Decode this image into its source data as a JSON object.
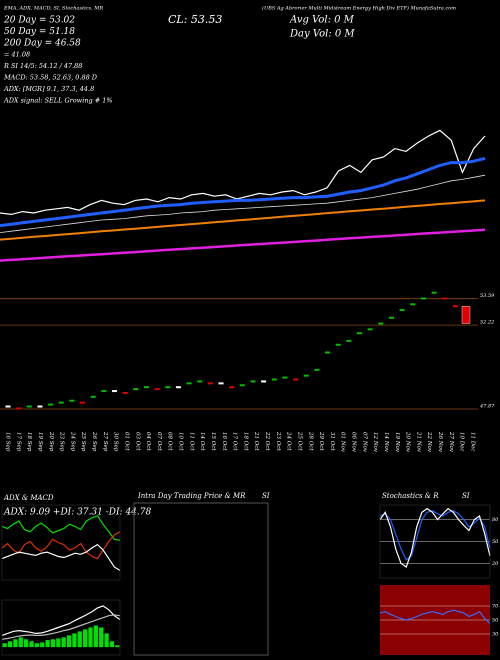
{
  "chart_data": [
    {
      "type": "line",
      "header_left": "EMA, ADX, MACD, SI, Stochastics, MR",
      "header_right": "(UBS Ag Abrorier Multi Midstream Energy High Div ETF) MunafaSutra.com",
      "close_label": "CL: 53.53",
      "avg_vol": "Avg Vol: 0  M",
      "day_vol": "Day Vol: 0  M",
      "stats": [
        "20 Day = 53.02",
        "50 Day = 51.18",
        "200 Day = 46.58",
        "= 41.08",
        "R      SI 14/5: 54.12 / 47.88",
        "MACD: 53.58, 52.63, 0.88 D",
        "ADX:          [MGR] 9.1, 37.3, 44.8",
        "ADX  signal: SELL Growing # 1%"
      ],
      "categories": [
        "16 Sep",
        "17 Sep",
        "18 Sep",
        "19 Sep",
        "20 Sep",
        "23 Sep",
        "24 Sep",
        "25 Sep",
        "26 Sep",
        "27 Sep",
        "30 Sep",
        "01 Oct",
        "03 Oct",
        "04 Oct",
        "07 Oct",
        "08 Oct",
        "10 Oct",
        "11 Oct",
        "14 Oct",
        "15 Oct",
        "16 Oct",
        "17 Oct",
        "18 Oct",
        "21 Oct",
        "22 Oct",
        "23 Oct",
        "24 Oct",
        "25 Oct",
        "28 Oct",
        "29 Oct",
        "31 Oct",
        "01 Nov",
        "06 Nov",
        "07 Nov",
        "12 Nov",
        "14 Nov",
        "19 Nov",
        "20 Nov",
        "21 Nov",
        "22 Nov",
        "26 Nov",
        "27 Nov",
        "10 Dec",
        "11 Dec"
      ],
      "ylim": [
        42.5,
        62.5
      ],
      "series": [
        {
          "color": "#ffffff",
          "values": [
            48.0,
            47.9,
            48.1,
            48.0,
            48.2,
            48.3,
            48.4,
            48.2,
            48.6,
            48.9,
            48.7,
            48.6,
            48.9,
            49.0,
            48.8,
            49.1,
            49.0,
            49.3,
            49.4,
            49.2,
            49.3,
            49.0,
            49.2,
            49.4,
            49.3,
            49.5,
            49.6,
            49.3,
            49.5,
            49.8,
            51.0,
            51.4,
            50.9,
            51.8,
            52.0,
            52.6,
            52.4,
            53.0,
            53.5,
            53.9,
            53.2,
            50.9,
            52.6,
            53.5
          ]
        },
        {
          "color": "#1f5fff",
          "values": [
            47.1,
            47.2,
            47.3,
            47.4,
            47.5,
            47.6,
            47.7,
            47.8,
            47.9,
            48.0,
            48.1,
            48.2,
            48.3,
            48.4,
            48.5,
            48.55,
            48.6,
            48.7,
            48.75,
            48.8,
            48.85,
            48.9,
            48.9,
            48.95,
            49.0,
            49.05,
            49.1,
            49.1,
            49.15,
            49.2,
            49.35,
            49.5,
            49.6,
            49.8,
            50.0,
            50.3,
            50.5,
            50.8,
            51.1,
            51.4,
            51.6,
            51.6,
            51.7,
            51.9
          ]
        },
        {
          "color": "#dddddd",
          "values": [
            46.6,
            46.7,
            46.8,
            46.9,
            47.0,
            47.1,
            47.2,
            47.3,
            47.4,
            47.5,
            47.55,
            47.6,
            47.7,
            47.8,
            47.85,
            47.9,
            48.0,
            48.05,
            48.1,
            48.2,
            48.25,
            48.3,
            48.35,
            48.4,
            48.45,
            48.5,
            48.55,
            48.6,
            48.65,
            48.7,
            48.8,
            48.9,
            49.0,
            49.1,
            49.25,
            49.4,
            49.55,
            49.7,
            49.9,
            50.1,
            50.3,
            50.4,
            50.55,
            50.7
          ]
        },
        {
          "color": "#f08000",
          "values": [
            46.1,
            46.16,
            46.23,
            46.3,
            46.36,
            46.43,
            46.49,
            46.56,
            46.62,
            46.69,
            46.75,
            46.82,
            46.88,
            46.95,
            47.01,
            47.08,
            47.14,
            47.21,
            47.27,
            47.34,
            47.4,
            47.47,
            47.53,
            47.6,
            47.66,
            47.73,
            47.79,
            47.86,
            47.92,
            47.99,
            48.05,
            48.12,
            48.18,
            48.25,
            48.31,
            48.38,
            48.44,
            48.51,
            48.57,
            48.64,
            48.7,
            48.77,
            48.83,
            48.9
          ]
        },
        {
          "color": "#e020e0",
          "values": [
            44.6,
            44.65,
            44.7,
            44.75,
            44.8,
            44.86,
            44.91,
            44.96,
            45.01,
            45.06,
            45.11,
            45.16,
            45.21,
            45.27,
            45.32,
            45.37,
            45.42,
            45.47,
            45.52,
            45.57,
            45.62,
            45.68,
            45.73,
            45.78,
            45.83,
            45.88,
            45.93,
            45.98,
            46.03,
            46.09,
            46.14,
            46.19,
            46.24,
            46.29,
            46.34,
            46.39,
            46.44,
            46.5,
            46.55,
            46.6,
            46.65,
            46.7,
            46.75,
            46.8
          ]
        }
      ]
    },
    {
      "type": "renko",
      "ylim": [
        47.3,
        54.3
      ],
      "yticks": [
        53.59,
        52.22,
        47.87
      ],
      "values": [
        48.0,
        47.9,
        48.0,
        48.0,
        48.1,
        48.2,
        48.3,
        48.2,
        48.5,
        48.8,
        48.8,
        48.7,
        48.9,
        49.0,
        48.9,
        49.0,
        49.0,
        49.2,
        49.3,
        49.2,
        49.2,
        49.0,
        49.1,
        49.3,
        49.3,
        49.4,
        49.5,
        49.4,
        49.6,
        49.9,
        50.8,
        51.2,
        51.4,
        51.8,
        52.0,
        52.3,
        52.6,
        53.0,
        53.3,
        53.6,
        53.9,
        53.6,
        53.2,
        52.3
      ]
    },
    {
      "type": "line",
      "title": "ADX  & MACD",
      "label": "ADX: 9.09  +DI: 37.31  -DI: 44.78",
      "ylim": [
        0,
        70
      ],
      "series": [
        {
          "color": "#00e000",
          "values": [
            50,
            48,
            52,
            55,
            47,
            45,
            50,
            53,
            49,
            44,
            46,
            48,
            52,
            50,
            47,
            55,
            58,
            60,
            52,
            45,
            38,
            37
          ]
        },
        {
          "color": "#e03000",
          "values": [
            30,
            34,
            28,
            25,
            33,
            36,
            30,
            27,
            31,
            38,
            35,
            33,
            28,
            30,
            34,
            26,
            22,
            20,
            28,
            36,
            42,
            45
          ]
        },
        {
          "color": "#ffffff",
          "values": [
            20,
            22,
            24,
            26,
            25,
            24,
            23,
            25,
            26,
            24,
            22,
            21,
            23,
            25,
            24,
            26,
            30,
            33,
            28,
            20,
            12,
            9
          ]
        }
      ]
    },
    {
      "type": "macd",
      "ylim": [
        -0.2,
        1.2
      ],
      "histogram": [
        0.1,
        0.15,
        0.2,
        0.25,
        0.2,
        0.15,
        0.1,
        0.12,
        0.18,
        0.2,
        0.22,
        0.25,
        0.3,
        0.35,
        0.4,
        0.45,
        0.5,
        0.55,
        0.5,
        0.35,
        0.15,
        0.05
      ],
      "series": [
        {
          "color": "#ffffff",
          "values": [
            0.3,
            0.35,
            0.4,
            0.42,
            0.4,
            0.38,
            0.35,
            0.36,
            0.4,
            0.45,
            0.5,
            0.55,
            0.6,
            0.68,
            0.75,
            0.82,
            0.9,
            1.0,
            1.05,
            0.95,
            0.8,
            0.7
          ]
        },
        {
          "color": "#bbbbbb",
          "values": [
            0.2,
            0.22,
            0.25,
            0.28,
            0.3,
            0.31,
            0.3,
            0.3,
            0.32,
            0.35,
            0.38,
            0.42,
            0.45,
            0.5,
            0.55,
            0.6,
            0.65,
            0.7,
            0.75,
            0.8,
            0.82,
            0.8
          ]
        }
      ]
    },
    {
      "type": "blank",
      "title": "Intra Day Trading Price  & MR",
      "subtitle": "SI"
    },
    {
      "type": "line",
      "title": "Stochastics & R",
      "subtitle": "SI",
      "ylim": [
        0,
        100
      ],
      "yticks": [
        80,
        50,
        20
      ],
      "series": [
        {
          "color": "#1f5fff",
          "values": [
            85,
            88,
            80,
            60,
            40,
            25,
            30,
            55,
            80,
            90,
            92,
            88,
            85,
            90,
            92,
            88,
            80,
            70,
            75,
            82,
            70,
            40
          ]
        },
        {
          "color": "#ffffff",
          "values": [
            80,
            90,
            70,
            40,
            20,
            15,
            35,
            70,
            90,
            95,
            90,
            80,
            88,
            95,
            90,
            80,
            72,
            65,
            80,
            85,
            60,
            30
          ]
        }
      ]
    },
    {
      "type": "line",
      "ylim": [
        0,
        100
      ],
      "yticks": [
        70,
        50,
        30
      ],
      "background": "#8b0000",
      "series": [
        {
          "color": "#3a6cff",
          "values": [
            60,
            62,
            58,
            55,
            52,
            50,
            52,
            55,
            58,
            60,
            62,
            60,
            58,
            62,
            64,
            62,
            60,
            55,
            58,
            62,
            52,
            45
          ]
        }
      ]
    }
  ]
}
